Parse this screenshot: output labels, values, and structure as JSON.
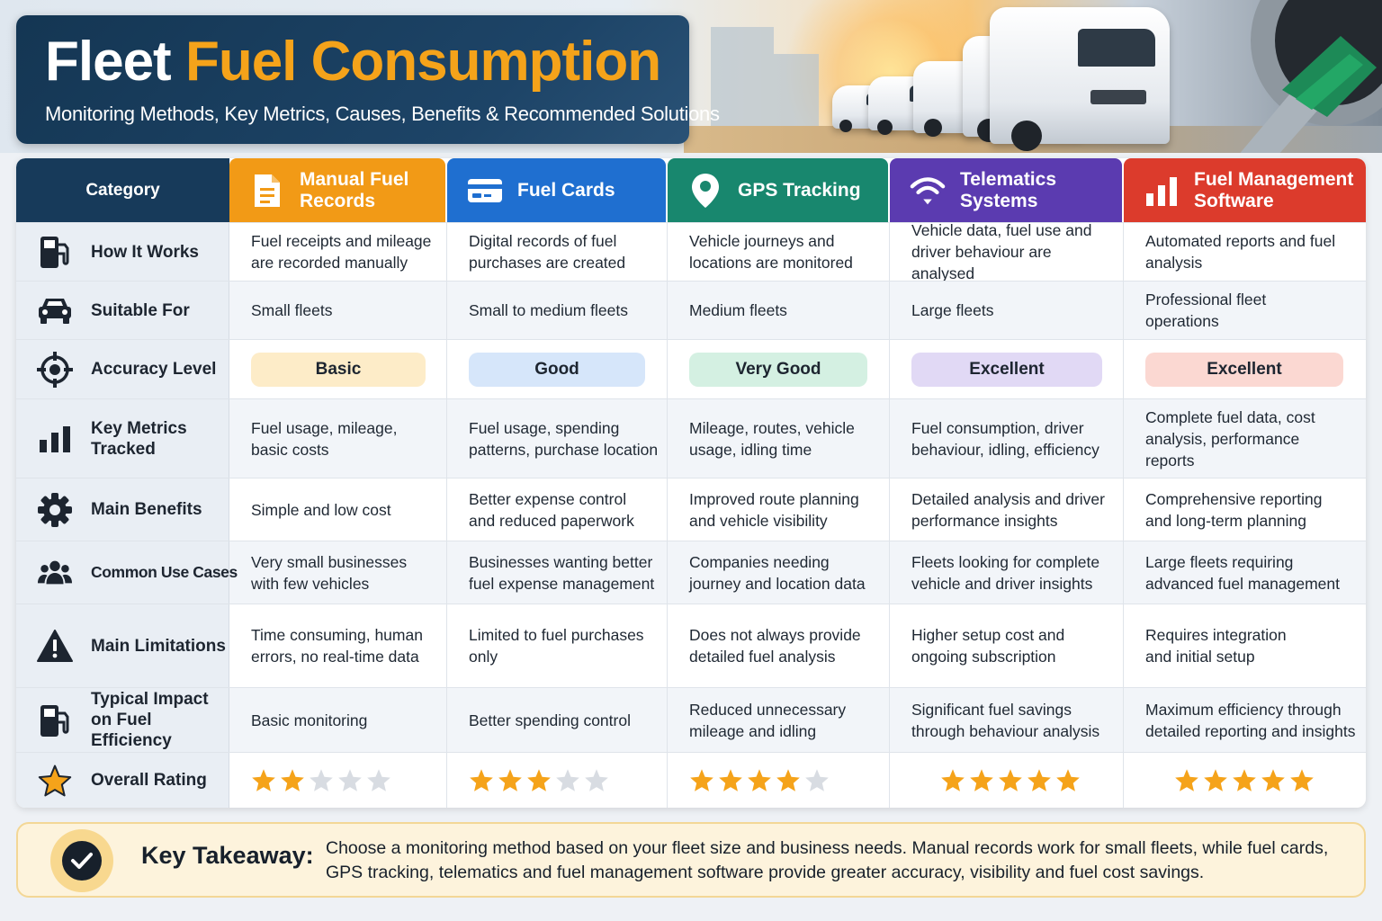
{
  "header": {
    "title_main": "Fleet",
    "title_accent": "Fuel Consumption",
    "subtitle": "Monitoring Methods, Key Metrics, Causes, Benefits & Recommended Solutions"
  },
  "table": {
    "category_header": "Category",
    "columns": [
      {
        "label": "Manual Fuel Records",
        "icon": "document-icon",
        "color": "#f29a16"
      },
      {
        "label": "Fuel Cards",
        "icon": "credit-card-icon",
        "color": "#1f6fd0"
      },
      {
        "label": "GPS Tracking",
        "icon": "map-pin-icon",
        "color": "#18876e"
      },
      {
        "label": "Telematics Systems",
        "icon": "wifi-icon",
        "color": "#5b3bb0"
      },
      {
        "label": "Fuel Management Software",
        "icon": "bar-chart-icon",
        "color": "#dc3b2c"
      }
    ],
    "rows": [
      {
        "category": "How It Works",
        "icon": "fuel-pump-icon",
        "cells": [
          "Fuel receipts and mileage are recorded manually",
          "Digital records of fuel purchases are created",
          "Vehicle journeys and locations are monitored",
          "Vehicle data, fuel use and driver behaviour are analysed",
          "Automated reports and fuel analysis"
        ]
      },
      {
        "category": "Suitable For",
        "icon": "car-icon",
        "cells": [
          "Small fleets",
          "Small to medium fleets",
          "Medium fleets",
          "Large fleets",
          "Professional fleet operations"
        ]
      },
      {
        "category": "Accuracy Level",
        "icon": "crosshair-icon",
        "badges": [
          {
            "label": "Basic",
            "color": "#fdecc8"
          },
          {
            "label": "Good",
            "color": "#d6e6fa"
          },
          {
            "label": "Very Good",
            "color": "#d4f0e2"
          },
          {
            "label": "Excellent",
            "color": "#e1d9f5"
          },
          {
            "label": "Excellent",
            "color": "#fbd8d2"
          }
        ]
      },
      {
        "category": "Key Metrics Tracked",
        "icon": "bar-chart-icon",
        "cells": [
          "Fuel usage, mileage, basic costs",
          "Fuel usage, spending patterns, purchase location",
          "Mileage, routes, vehicle usage, idling time",
          "Fuel consumption, driver behaviour, idling, efficiency",
          "Complete fuel data, cost analysis, performance reports"
        ]
      },
      {
        "category": "Main Benefits",
        "icon": "gear-icon",
        "cells": [
          "Simple and low cost",
          "Better expense control and reduced paperwork",
          "Improved route planning and vehicle visibility",
          "Detailed analysis and driver performance insights",
          "Comprehensive reporting and long-term planning"
        ]
      },
      {
        "category": "Common Use Cases",
        "icon": "users-icon",
        "cells": [
          "Very small businesses with few vehicles",
          "Businesses wanting better fuel expense management",
          "Companies needing journey and location data",
          "Fleets looking for complete vehicle and driver insights",
          "Large fleets requiring advanced fuel management"
        ]
      },
      {
        "category": "Main Limitations",
        "icon": "warning-icon",
        "cells": [
          "Time consuming, human errors, no real-time data",
          "Limited to fuel purchases only",
          "Does not always provide detailed fuel analysis",
          "Higher setup cost and ongoing subscription",
          "Requires integration and initial setup"
        ]
      },
      {
        "category": "Typical Impact on Fuel Efficiency",
        "icon": "fuel-pump-icon",
        "cells": [
          "Basic monitoring",
          "Better spending control",
          "Reduced unnecessary mileage and idling",
          "Significant fuel savings through behaviour analysis",
          "Maximum efficiency through detailed reporting and insights"
        ]
      },
      {
        "category": "Overall Rating",
        "icon": "star-icon",
        "ratings": [
          2,
          3,
          4,
          5,
          5
        ],
        "max_rating": 5
      }
    ]
  },
  "takeaway": {
    "label": "Key Takeaway:",
    "text": "Choose a monitoring method based on your fleet size and business needs. Manual records work for small fleets, while fuel cards, GPS tracking, telematics and fuel management software provide greater accuracy, visibility and fuel cost savings."
  },
  "colors": {
    "navy": "#173a5a",
    "accent": "#f5a31a",
    "star_on": "#f5a31a",
    "star_off": "#d8dce2"
  }
}
